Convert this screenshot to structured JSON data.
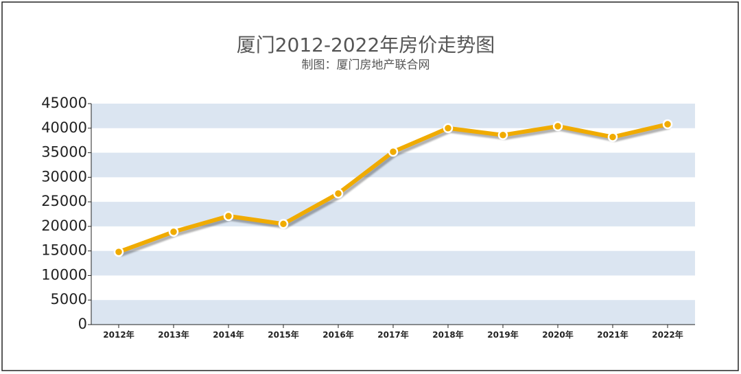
{
  "chart_data": {
    "type": "line",
    "title": "厦门2012-2022年房价走势图",
    "subtitle": "制图：厦门房地产联合网",
    "categories": [
      "2012年",
      "2013年",
      "2014年",
      "2015年",
      "2016年",
      "2017年",
      "2018年",
      "2019年",
      "2020年",
      "2021年",
      "2022年"
    ],
    "values": [
      14800,
      18900,
      22100,
      20500,
      26700,
      35200,
      40000,
      38600,
      40400,
      38200,
      40800
    ],
    "color": "#f0ab00",
    "band_color": "#dbe5f1",
    "ylim": [
      0,
      45000
    ],
    "yticks": [
      0,
      5000,
      10000,
      15000,
      20000,
      25000,
      30000,
      35000,
      40000,
      45000
    ]
  }
}
